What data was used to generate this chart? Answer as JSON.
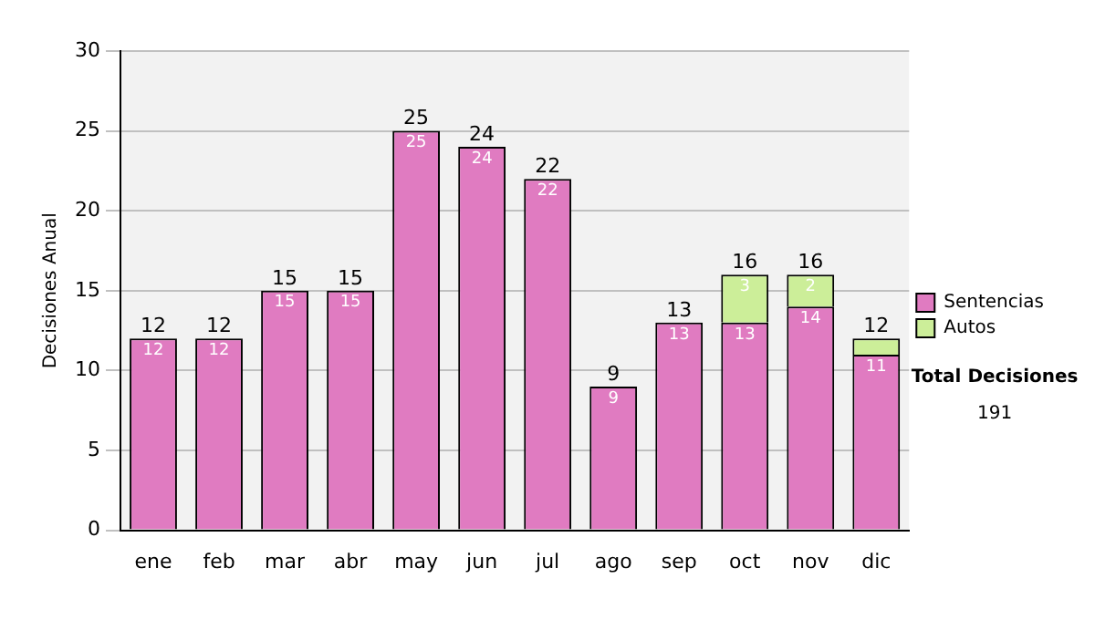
{
  "chart_data": {
    "type": "bar",
    "stacked": true,
    "ylabel": "Decisiones Anual",
    "categories": [
      "ene",
      "feb",
      "mar",
      "abr",
      "may",
      "jun",
      "jul",
      "ago",
      "sep",
      "oct",
      "nov",
      "dic"
    ],
    "series": [
      {
        "name": "Sentencias",
        "color": "#e07bc1",
        "values": [
          12,
          12,
          15,
          15,
          25,
          24,
          22,
          9,
          13,
          13,
          14,
          11
        ],
        "value_labels": [
          "12",
          "12",
          "15",
          "15",
          "25",
          "24",
          "22",
          "9",
          "13",
          "13",
          "14",
          "11"
        ]
      },
      {
        "name": "Autos",
        "color": "#ccee99",
        "values": [
          null,
          null,
          null,
          null,
          null,
          null,
          null,
          null,
          null,
          3,
          2,
          1
        ],
        "value_labels": [
          null,
          null,
          null,
          null,
          null,
          null,
          null,
          null,
          null,
          "3",
          "2",
          null
        ]
      }
    ],
    "totals": [
      "12",
      "12",
      "15",
      "15",
      "25",
      "24",
      "22",
      "9",
      "13",
      "16",
      "16",
      "12"
    ],
    "ylim": [
      0,
      30
    ],
    "yticks": [
      0,
      5,
      10,
      15,
      20,
      25,
      30
    ],
    "grid": "y",
    "legend": "right",
    "annotations": [
      "Total Decisiones",
      "191"
    ]
  }
}
